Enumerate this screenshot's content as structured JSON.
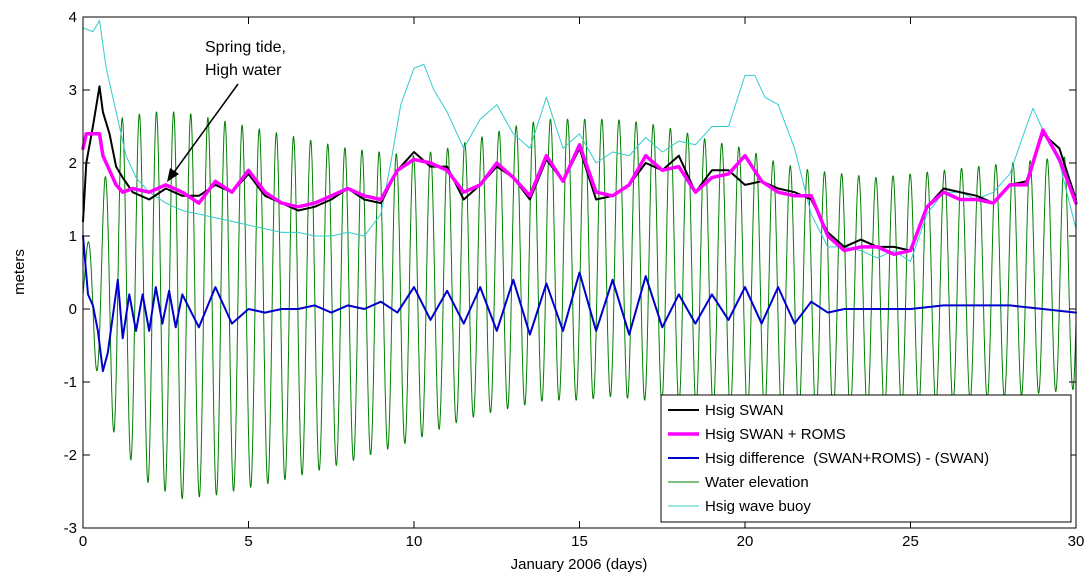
{
  "chart_data": {
    "type": "line",
    "title": "",
    "xlabel": "January 2006 (days)",
    "ylabel": "meters",
    "xlim": [
      0,
      30
    ],
    "ylim": [
      -3,
      4
    ],
    "xticks": [
      0,
      5,
      10,
      15,
      20,
      25,
      30
    ],
    "yticks": [
      -3,
      -2,
      -1,
      0,
      1,
      2,
      3,
      4
    ],
    "grid": false,
    "legend_position": "bottom-right",
    "annotation": {
      "lines": [
        "Spring tide,",
        "High water"
      ],
      "points_to": {
        "x": 3.0,
        "y": 1.7
      }
    },
    "water_elevation_model": {
      "period_days": 0.5175,
      "envelope_x": [
        0,
        0.5,
        1,
        2,
        3,
        4,
        6,
        8,
        10,
        11,
        12,
        13,
        14,
        15,
        16,
        17,
        18,
        19,
        20,
        21,
        22,
        24,
        26,
        28,
        30
      ],
      "max_y": [
        0.7,
        1.4,
        2.6,
        2.7,
        2.7,
        2.6,
        2.4,
        2.2,
        2.1,
        2.2,
        2.35,
        2.5,
        2.6,
        2.6,
        2.6,
        2.55,
        2.45,
        2.3,
        2.2,
        2.0,
        1.9,
        1.8,
        1.9,
        2.0,
        2.1
      ],
      "min_y": [
        -0.1,
        -1.0,
        -1.8,
        -2.4,
        -2.6,
        -2.55,
        -2.35,
        -2.1,
        -1.8,
        -1.6,
        -1.45,
        -1.35,
        -1.25,
        -1.25,
        -1.2,
        -1.25,
        -1.3,
        -1.35,
        -1.4,
        -1.45,
        -1.45,
        -1.4,
        -1.3,
        -1.2,
        -1.1
      ]
    },
    "series": [
      {
        "name": "Hsig SWAN",
        "color": "#000000",
        "width": 2,
        "x": [
          0,
          0.1,
          0.3,
          0.5,
          0.6,
          0.8,
          1.0,
          1.2,
          1.5,
          2.0,
          2.5,
          3.0,
          3.5,
          4.0,
          4.5,
          5.0,
          5.5,
          6.0,
          6.5,
          7.0,
          7.5,
          8.0,
          8.5,
          9.0,
          9.5,
          10.0,
          10.5,
          11.0,
          11.5,
          12.0,
          12.5,
          13.0,
          13.5,
          14.0,
          14.5,
          15.0,
          15.5,
          16.0,
          16.5,
          17.0,
          17.5,
          18.0,
          18.5,
          19.0,
          19.5,
          20.0,
          20.5,
          21.0,
          21.5,
          22.0,
          22.5,
          23.0,
          23.5,
          24.0,
          24.5,
          25.0,
          25.5,
          26.0,
          26.5,
          27.0,
          27.5,
          28.0,
          28.5,
          29.0,
          29.5,
          30.0
        ],
        "y": [
          1.2,
          2.0,
          2.5,
          3.05,
          2.7,
          2.4,
          1.95,
          1.8,
          1.6,
          1.5,
          1.65,
          1.55,
          1.55,
          1.7,
          1.6,
          1.85,
          1.55,
          1.45,
          1.35,
          1.4,
          1.5,
          1.65,
          1.5,
          1.45,
          1.9,
          2.15,
          1.95,
          1.95,
          1.5,
          1.7,
          1.95,
          1.8,
          1.5,
          2.05,
          1.75,
          2.2,
          1.5,
          1.55,
          1.7,
          2.0,
          1.9,
          2.1,
          1.6,
          1.9,
          1.9,
          1.7,
          1.75,
          1.65,
          1.6,
          1.5,
          1.05,
          0.85,
          0.95,
          0.85,
          0.85,
          0.8,
          1.4,
          1.65,
          1.6,
          1.55,
          1.45,
          1.7,
          1.75,
          2.4,
          2.2,
          1.5
        ]
      },
      {
        "name": "Hsig SWAN + ROMS",
        "color": "#ff00ff",
        "width": 3.5,
        "x": [
          0,
          0.1,
          0.3,
          0.5,
          0.6,
          0.8,
          1.0,
          1.2,
          1.5,
          2.0,
          2.5,
          3.0,
          3.5,
          4.0,
          4.5,
          5.0,
          5.5,
          6.0,
          6.5,
          7.0,
          7.5,
          8.0,
          8.5,
          9.0,
          9.5,
          10.0,
          10.5,
          11.0,
          11.5,
          12.0,
          12.5,
          13.0,
          13.5,
          14.0,
          14.5,
          15.0,
          15.5,
          16.0,
          16.5,
          17.0,
          17.5,
          18.0,
          18.5,
          19.0,
          19.5,
          20.0,
          20.5,
          21.0,
          21.5,
          22.0,
          22.5,
          23.0,
          23.5,
          24.0,
          24.5,
          25.0,
          25.5,
          26.0,
          26.5,
          27.0,
          27.5,
          28.0,
          28.5,
          29.0,
          29.5,
          30.0
        ],
        "y": [
          2.2,
          2.4,
          2.4,
          2.4,
          2.1,
          1.9,
          1.7,
          1.6,
          1.65,
          1.6,
          1.7,
          1.6,
          1.45,
          1.75,
          1.6,
          1.9,
          1.6,
          1.45,
          1.4,
          1.45,
          1.55,
          1.65,
          1.55,
          1.5,
          1.9,
          2.05,
          2.0,
          1.9,
          1.6,
          1.7,
          2.0,
          1.8,
          1.55,
          2.1,
          1.75,
          2.25,
          1.6,
          1.55,
          1.7,
          2.1,
          1.9,
          1.95,
          1.6,
          1.8,
          1.85,
          2.1,
          1.75,
          1.6,
          1.55,
          1.55,
          1.0,
          0.8,
          0.85,
          0.85,
          0.75,
          0.8,
          1.4,
          1.6,
          1.5,
          1.5,
          1.45,
          1.7,
          1.7,
          2.45,
          2.05,
          1.45
        ]
      },
      {
        "name": "Hsig difference  (SWAN+ROMS) - (SWAN)",
        "color": "#0000cc",
        "width": 2,
        "x": [
          0,
          0.15,
          0.3,
          0.45,
          0.6,
          0.75,
          0.9,
          1.05,
          1.2,
          1.4,
          1.6,
          1.8,
          2.0,
          2.2,
          2.4,
          2.6,
          2.8,
          3.0,
          3.5,
          4.0,
          4.5,
          5.0,
          5.5,
          6.0,
          6.5,
          7.0,
          7.5,
          8.0,
          8.5,
          9.0,
          9.5,
          10.0,
          10.5,
          11.0,
          11.5,
          12.0,
          12.5,
          13.0,
          13.5,
          14.0,
          14.5,
          15.0,
          15.5,
          16.0,
          16.5,
          17.0,
          17.5,
          18.0,
          18.5,
          19.0,
          19.5,
          20.0,
          20.5,
          21.0,
          21.5,
          22.0,
          22.5,
          23.0,
          24.0,
          25.0,
          26.0,
          27.0,
          28.0,
          29.0,
          30.0
        ],
        "y": [
          1.0,
          0.2,
          0.05,
          -0.3,
          -0.85,
          -0.6,
          -0.1,
          0.4,
          -0.4,
          0.2,
          -0.3,
          0.2,
          -0.3,
          0.3,
          -0.2,
          0.25,
          -0.25,
          0.2,
          -0.25,
          0.3,
          -0.2,
          0.0,
          -0.05,
          0.0,
          0.0,
          0.05,
          -0.05,
          0.05,
          0.0,
          0.1,
          -0.05,
          0.3,
          -0.15,
          0.25,
          -0.2,
          0.3,
          -0.3,
          0.4,
          -0.35,
          0.35,
          -0.3,
          0.5,
          -0.3,
          0.4,
          -0.35,
          0.45,
          -0.25,
          0.2,
          -0.2,
          0.2,
          -0.15,
          0.3,
          -0.2,
          0.3,
          -0.2,
          0.1,
          -0.05,
          0.0,
          0.0,
          0.0,
          0.05,
          0.05,
          0.05,
          0.0,
          -0.05
        ]
      },
      {
        "name": "Water elevation",
        "color": "#008000",
        "width": 1,
        "generated": true
      },
      {
        "name": "Hsig wave buoy",
        "color": "#33cccc",
        "width": 1,
        "x": [
          0,
          0.3,
          0.5,
          0.7,
          1.0,
          1.3,
          1.6,
          2.0,
          2.5,
          3.0,
          3.5,
          4.0,
          4.5,
          5.0,
          5.5,
          6.0,
          6.5,
          7.0,
          7.5,
          8.0,
          8.5,
          9.0,
          9.3,
          9.6,
          10.0,
          10.3,
          10.6,
          11.0,
          11.5,
          12.0,
          12.5,
          13.0,
          13.5,
          14.0,
          14.5,
          15.0,
          15.5,
          16.0,
          16.5,
          17.0,
          17.5,
          18.0,
          18.5,
          19.0,
          19.5,
          20.0,
          20.3,
          20.6,
          21.0,
          21.5,
          22.0,
          22.5,
          23.0,
          23.5,
          24.0,
          24.5,
          25.0,
          25.5,
          26.0,
          26.5,
          27.0,
          27.5,
          28.0,
          28.5,
          28.7,
          29.0,
          29.5,
          30.0
        ],
        "y": [
          3.85,
          3.8,
          3.95,
          3.3,
          2.7,
          2.1,
          1.8,
          1.6,
          1.45,
          1.35,
          1.3,
          1.25,
          1.2,
          1.15,
          1.1,
          1.05,
          1.05,
          1.0,
          1.0,
          1.05,
          1.0,
          1.3,
          2.0,
          2.8,
          3.3,
          3.35,
          3.0,
          2.7,
          2.2,
          2.6,
          2.8,
          2.4,
          2.2,
          2.9,
          2.2,
          2.4,
          2.0,
          2.15,
          2.1,
          2.35,
          2.15,
          2.3,
          2.25,
          2.5,
          2.5,
          3.2,
          3.2,
          2.9,
          2.8,
          2.2,
          1.3,
          0.85,
          0.85,
          0.8,
          0.7,
          0.8,
          0.65,
          1.3,
          1.6,
          1.6,
          1.5,
          1.6,
          1.85,
          2.5,
          2.75,
          2.45,
          2.0,
          1.1
        ]
      }
    ]
  }
}
